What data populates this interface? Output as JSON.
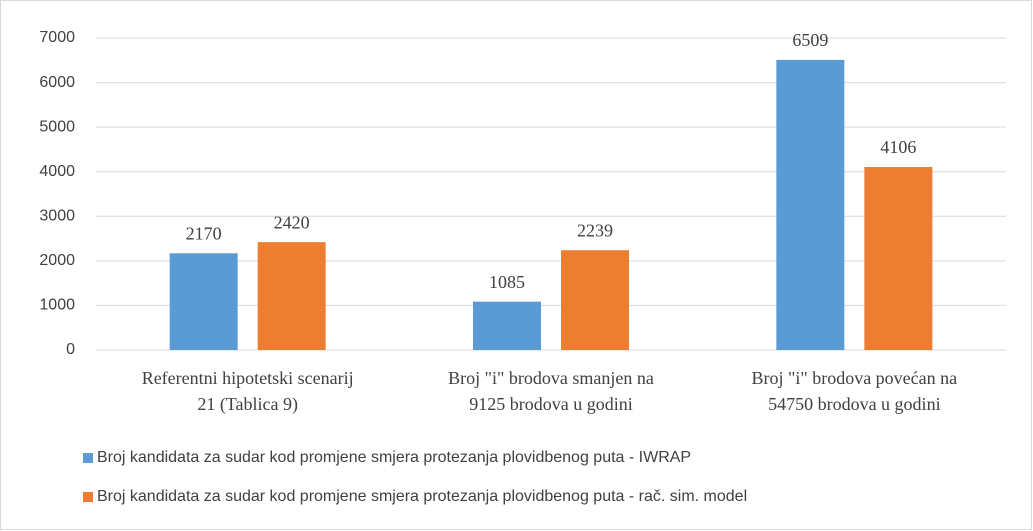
{
  "chart_data": {
    "type": "bar",
    "categories": [
      [
        "Referentni hipotetski scenarij",
        "21 (Tablica 9)"
      ],
      [
        "Broj \"i\" brodova smanjen na",
        "9125 brodova u godini"
      ],
      [
        "Broj \"i\" brodova povećan na",
        "54750 brodova u godini"
      ]
    ],
    "series": [
      {
        "name": "Broj kandidata za sudar kod promjene smjera protezanja plovidbenog puta - IWRAP",
        "color": "#5b9bd5",
        "values": [
          2170,
          1085,
          6509
        ]
      },
      {
        "name": "Broj kandidata za sudar kod promjene smjera protezanja plovidbenog puta - rač. sim. model",
        "color": "#ed7d31",
        "values": [
          2420,
          2239,
          4106
        ]
      }
    ],
    "ylim": [
      0,
      7000
    ],
    "yticks": [
      0,
      1000,
      2000,
      3000,
      4000,
      5000,
      6000,
      7000
    ],
    "grid": true,
    "legend": "bottom"
  }
}
